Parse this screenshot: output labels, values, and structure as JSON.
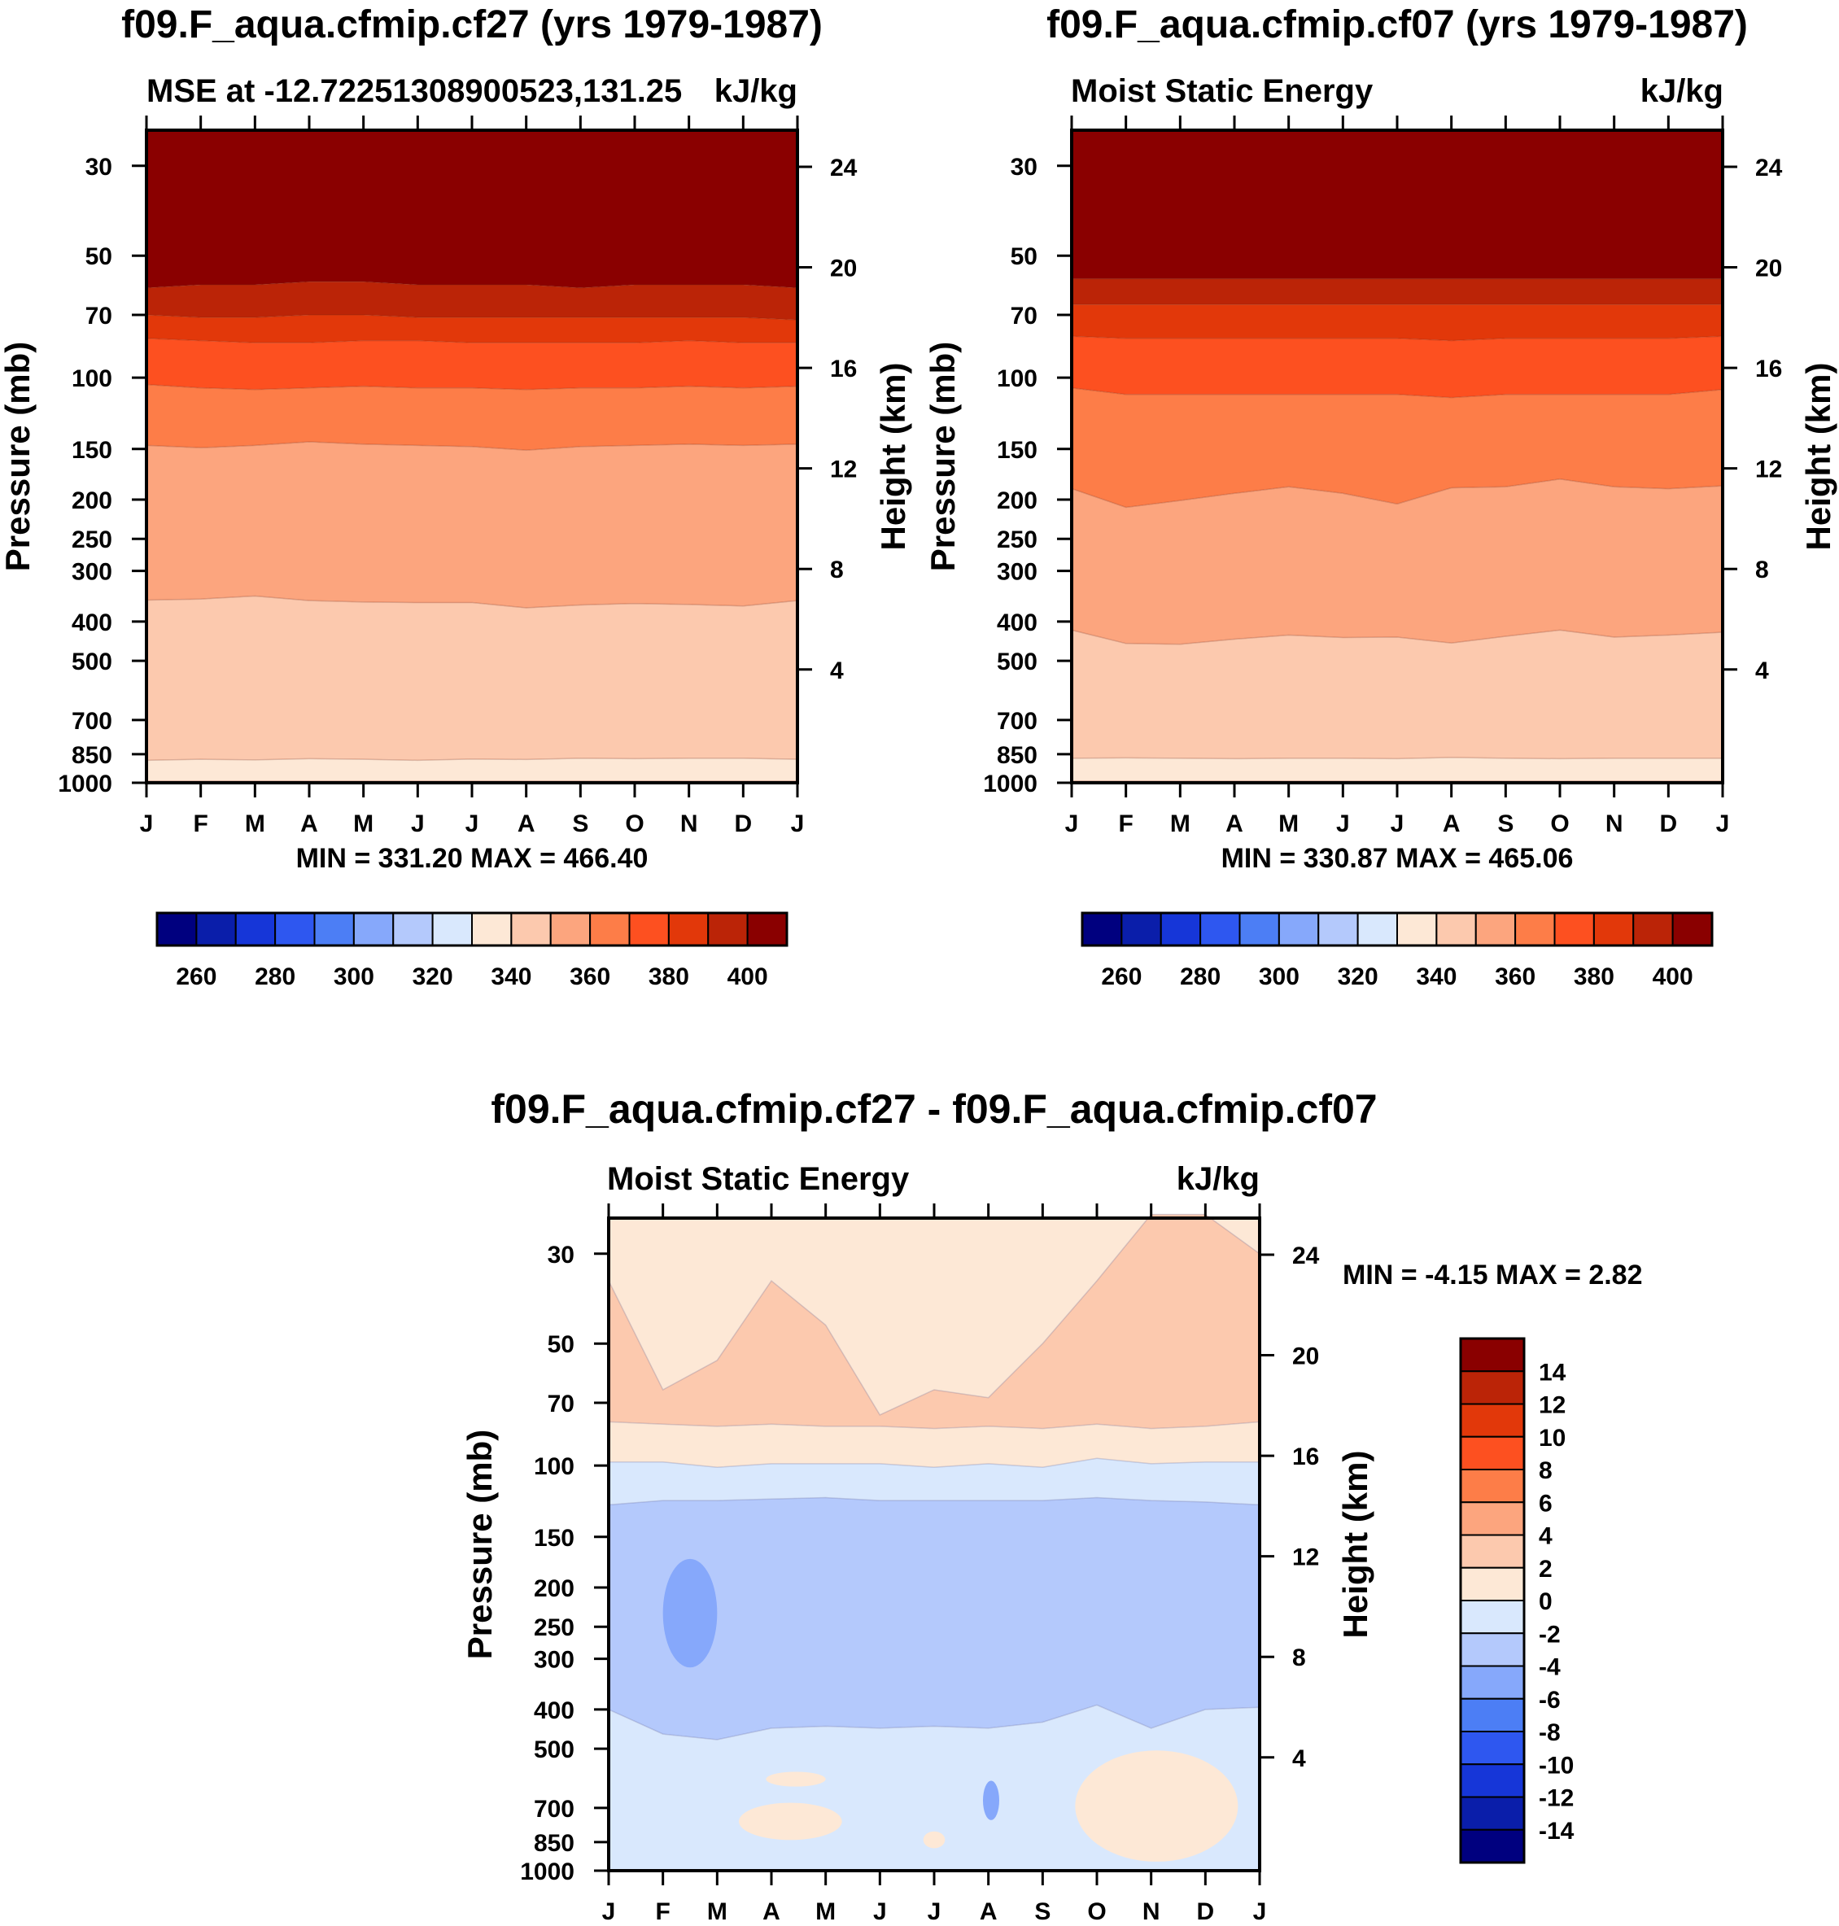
{
  "colors": {
    "abs_palette": [
      "#00007f",
      "#0a1eaa",
      "#1636d8",
      "#2e57f0",
      "#4c7ef5",
      "#86a8fb",
      "#b4c9fc",
      "#d9e8fd",
      "#fde8d6",
      "#fcc9ae",
      "#fca57e",
      "#fd7d48",
      "#fd5020",
      "#e2380a",
      "#bb2407",
      "#8a0000"
    ],
    "diff_palette": [
      "#00007f",
      "#0a1eaa",
      "#1636d8",
      "#2e57f0",
      "#4c7ef5",
      "#86a8fb",
      "#b4c9fc",
      "#d9e8fd",
      "#fde8d6",
      "#fcc9ae",
      "#fca57e",
      "#fd7d48",
      "#fd5020",
      "#e2380a",
      "#bb2407",
      "#8a0000"
    ]
  },
  "chart_data": [
    {
      "type": "heatmap",
      "title": "f09.F_aqua.cfmip.cf27 (yrs 1979-1987)",
      "subtitle_left": "MSE at -12.72251308900523,131.25",
      "subtitle_right": "kJ/kg",
      "xlabel": "",
      "ylabel": "Pressure (mb)",
      "ylabel_right": "Height (km)",
      "x_ticks": [
        "J",
        "F",
        "M",
        "A",
        "M",
        "J",
        "J",
        "A",
        "S",
        "O",
        "N",
        "D",
        "J"
      ],
      "y_ticks": [
        30,
        50,
        70,
        100,
        150,
        200,
        250,
        300,
        400,
        500,
        700,
        850,
        1000
      ],
      "y_ticks_right": [
        24,
        20,
        16,
        12,
        8,
        4
      ],
      "ylim": [
        1000,
        24
      ],
      "stats": "MIN = 331.20 MAX = 466.40",
      "levels": [
        260,
        270,
        280,
        290,
        300,
        310,
        320,
        330,
        340,
        350,
        360,
        370,
        380,
        390,
        400
      ],
      "colorbar_labels": [
        "260",
        "280",
        "300",
        "320",
        "340",
        "360",
        "380",
        "400"
      ],
      "contour_boundaries_mb": [
        {
          "name": "400",
          "values": [
            60,
            59,
            59,
            58,
            58,
            59,
            59,
            59,
            60,
            59,
            59,
            59,
            60
          ]
        },
        {
          "name": "390",
          "values": [
            70,
            71,
            71,
            70,
            70,
            71,
            71,
            71,
            71,
            71,
            71,
            71,
            72
          ]
        },
        {
          "name": "380",
          "values": [
            80,
            81,
            82,
            82,
            81,
            81,
            82,
            82,
            82,
            82,
            81,
            82,
            82
          ]
        },
        {
          "name": "370",
          "values": [
            104,
            106,
            107,
            106,
            105,
            106,
            106,
            107,
            106,
            106,
            105,
            106,
            105
          ]
        },
        {
          "name": "360",
          "values": [
            147,
            149,
            147,
            144,
            146,
            147,
            148,
            151,
            148,
            147,
            146,
            147,
            146
          ]
        },
        {
          "name": "350",
          "values": [
            354,
            352,
            346,
            355,
            358,
            359,
            359,
            370,
            364,
            361,
            363,
            366,
            355
          ]
        },
        {
          "name": "340",
          "values": [
            880,
            875,
            878,
            872,
            875,
            880,
            874,
            876,
            870,
            872,
            870,
            870,
            875
          ]
        },
        {
          "name": "330",
          "values": [
            990,
            990,
            990,
            990,
            990,
            990,
            990,
            990,
            990,
            990,
            990,
            990,
            990
          ]
        }
      ]
    },
    {
      "type": "heatmap",
      "title": "f09.F_aqua.cfmip.cf07 (yrs 1979-1987)",
      "subtitle_left": "Moist Static Energy",
      "subtitle_right": "kJ/kg",
      "xlabel": "",
      "ylabel": "Pressure (mb)",
      "ylabel_right": "Height (km)",
      "x_ticks": [
        "J",
        "F",
        "M",
        "A",
        "M",
        "J",
        "J",
        "A",
        "S",
        "O",
        "N",
        "D",
        "J"
      ],
      "y_ticks": [
        30,
        50,
        70,
        100,
        150,
        200,
        250,
        300,
        400,
        500,
        700,
        850,
        1000
      ],
      "y_ticks_right": [
        24,
        20,
        16,
        12,
        8,
        4
      ],
      "ylim": [
        1000,
        24
      ],
      "stats": "MIN = 330.87 MAX = 465.06",
      "levels": [
        260,
        270,
        280,
        290,
        300,
        310,
        320,
        330,
        340,
        350,
        360,
        370,
        380,
        390,
        400
      ],
      "colorbar_labels": [
        "260",
        "280",
        "300",
        "320",
        "340",
        "360",
        "380",
        "400"
      ],
      "contour_boundaries_mb": [
        {
          "name": "400",
          "values": [
            57,
            57,
            57,
            57,
            57,
            57,
            57,
            57,
            57,
            57,
            57,
            57,
            57
          ]
        },
        {
          "name": "390",
          "values": [
            66,
            66,
            66,
            66,
            66,
            66,
            66,
            66,
            66,
            66,
            66,
            66,
            66
          ]
        },
        {
          "name": "380",
          "values": [
            79,
            80,
            80,
            80,
            80,
            80,
            80,
            81,
            80,
            80,
            80,
            80,
            79
          ]
        },
        {
          "name": "370",
          "values": [
            106,
            110,
            110,
            110,
            110,
            110,
            110,
            112,
            110,
            110,
            110,
            110,
            107
          ]
        },
        {
          "name": "360",
          "values": [
            188,
            209,
            201,
            193,
            186,
            193,
            205,
            187,
            186,
            178,
            186,
            188,
            185
          ]
        },
        {
          "name": "350",
          "values": [
            420,
            453,
            455,
            442,
            432,
            438,
            437,
            452,
            435,
            420,
            437,
            432,
            425
          ]
        },
        {
          "name": "340",
          "values": [
            870,
            868,
            870,
            872,
            870,
            870,
            872,
            866,
            870,
            872,
            870,
            870,
            870
          ]
        },
        {
          "name": "330",
          "values": [
            990,
            990,
            990,
            990,
            990,
            990,
            990,
            990,
            990,
            990,
            990,
            990,
            990
          ]
        }
      ]
    },
    {
      "type": "heatmap",
      "title": "f09.F_aqua.cfmip.cf27 - f09.F_aqua.cfmip.cf07",
      "subtitle_left": "Moist Static Energy",
      "subtitle_right": "kJ/kg",
      "xlabel": "",
      "ylabel": "Pressure (mb)",
      "ylabel_right": "Height (km)",
      "x_ticks": [
        "J",
        "F",
        "M",
        "A",
        "M",
        "J",
        "J",
        "A",
        "S",
        "O",
        "N",
        "D",
        "J"
      ],
      "y_ticks": [
        30,
        50,
        70,
        100,
        150,
        200,
        250,
        300,
        400,
        500,
        700,
        850,
        1000
      ],
      "y_ticks_right": [
        24,
        20,
        16,
        12,
        8,
        4
      ],
      "ylim": [
        1000,
        24
      ],
      "stats": "MIN =  -4.15 MAX =   2.82",
      "levels": [
        -14,
        -12,
        -10,
        -8,
        -6,
        -4,
        -2,
        0,
        2,
        4,
        6,
        8,
        10,
        12,
        14
      ],
      "colorbar_labels": [
        "14",
        "12",
        "10",
        "8",
        "6",
        "4",
        "2",
        "0",
        "-2",
        "-4",
        "-6",
        "-8",
        "-10",
        "-12",
        "-14"
      ],
      "contour_boundaries_mb": [
        {
          "name": "2 (upper)",
          "values": [
            35,
            65,
            55,
            35,
            45,
            75,
            65,
            68,
            50,
            35,
            24,
            24,
            30
          ]
        },
        {
          "name": "2 (lower)",
          "values": [
            78,
            79,
            80,
            79,
            80,
            80,
            81,
            80,
            81,
            79,
            81,
            80,
            78
          ]
        },
        {
          "name": "0",
          "values": [
            98,
            98,
            101,
            99,
            99,
            99,
            101,
            99,
            101,
            96,
            99,
            98,
            98
          ]
        },
        {
          "name": "-2 (top)",
          "values": [
            125,
            122,
            122,
            121,
            120,
            122,
            122,
            122,
            122,
            120,
            122,
            123,
            125
          ]
        },
        {
          "name": "-2 (bottom)",
          "values": [
            400,
            460,
            475,
            445,
            440,
            445,
            440,
            445,
            430,
            390,
            445,
            400,
            395
          ]
        }
      ],
      "anomalies": [
        {
          "name": "-4 pocket",
          "x": [
            1.0,
            2.0
          ],
          "p_mb": [
            170,
            315
          ]
        },
        {
          "name": "0 patch 1",
          "x": [
            2.9,
            4.0
          ],
          "p_mb": [
            570,
            620
          ]
        },
        {
          "name": "0 patch 2",
          "x": [
            2.4,
            4.3
          ],
          "p_mb": [
            680,
            840
          ]
        },
        {
          "name": "0 patch 3",
          "x": [
            8.6,
            11.6
          ],
          "p_mb": [
            505,
            950
          ]
        },
        {
          "name": "-2 spot",
          "x": [
            6.9,
            7.2
          ],
          "p_mb": [
            600,
            750
          ]
        },
        {
          "name": "0 dot",
          "x": [
            5.8,
            6.2
          ],
          "p_mb": [
            800,
            880
          ]
        }
      ]
    }
  ]
}
